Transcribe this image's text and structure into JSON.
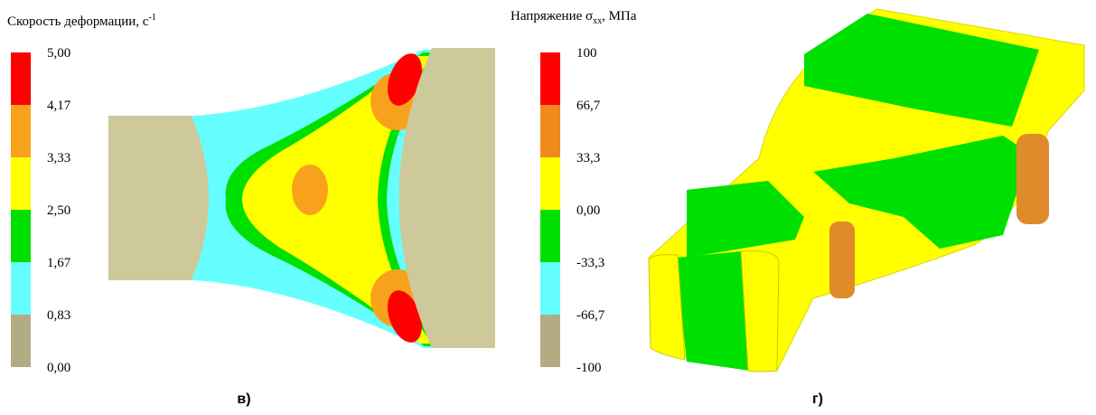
{
  "left_legend": {
    "title": "Скорость деформации, с",
    "title_superscript": "-1",
    "labels": [
      "5,00",
      "4,17",
      "3,33",
      "2,50",
      "1,67",
      "0,83",
      "0,00"
    ],
    "colors": [
      "#ff0000",
      "#f8a21c",
      "#ffff00",
      "#00e000",
      "#66ffff",
      "#b3ab84"
    ]
  },
  "right_legend": {
    "title": "Напряжение σ",
    "title_subscript": "xx",
    "title_suffix": ", МПа",
    "labels": [
      "100",
      "66,7",
      "33,3",
      "0,00",
      "-33,3",
      "-66,7",
      "-100"
    ],
    "colors": [
      "#ff0000",
      "#f08a1c",
      "#ffff00",
      "#00e000",
      "#66ffff",
      "#b3ab84"
    ]
  },
  "panels": [
    "в)",
    "г)"
  ]
}
